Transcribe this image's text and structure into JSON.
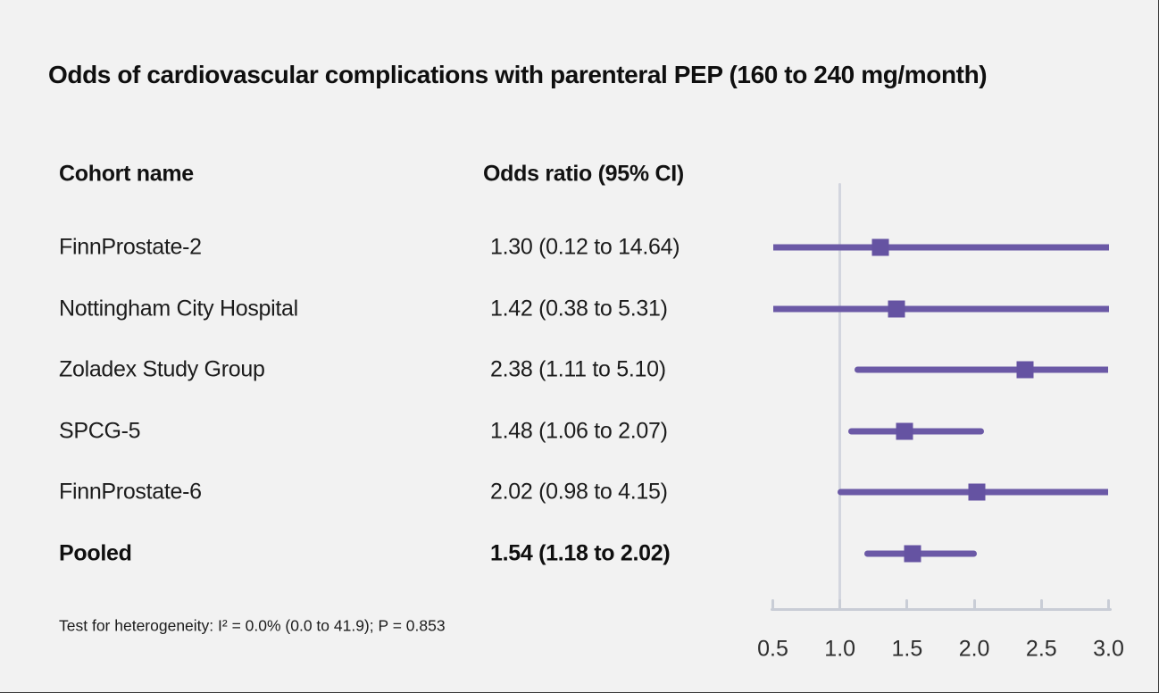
{
  "title": "Odds of cardiovascular complications with parenteral PEP (160 to 240 mg/month)",
  "table": {
    "col1_header": "Cohort name",
    "col2_header": "Odds ratio (95% CI)",
    "rows": [
      {
        "name": "FinnProstate-2",
        "or_text": "1.30 (0.12 to 14.64)",
        "bold": false
      },
      {
        "name": "Nottingham City Hospital",
        "or_text": "1.42 (0.38 to 5.31)",
        "bold": false
      },
      {
        "name": "Zoladex Study Group",
        "or_text": "2.38 (1.11 to 5.10)",
        "bold": false
      },
      {
        "name": "SPCG-5",
        "or_text": "1.48 (1.06 to 2.07)",
        "bold": false
      },
      {
        "name": "FinnProstate-6",
        "or_text": "2.02 (0.98 to 4.15)",
        "bold": false
      },
      {
        "name": "Pooled",
        "or_text": "1.54 (1.18 to 2.02)",
        "bold": true
      }
    ]
  },
  "footnote": "Test for heterogeneity: I² = 0.0% (0.0 to 41.9); P = 0.853",
  "chart_data": {
    "type": "forest",
    "title": "Odds of cardiovascular complications with parenteral PEP (160 to 240 mg/month)",
    "xlabel": "Odds ratio",
    "xlim": [
      0.5,
      3.0
    ],
    "x_ticks": [
      0.5,
      1.0,
      1.5,
      2.0,
      2.5,
      3.0
    ],
    "x_tick_labels": [
      "0.5",
      "1.0",
      "1.5",
      "2.0",
      "2.5",
      "3.0"
    ],
    "reference_line_x": 1.0,
    "grid": false,
    "series": [
      {
        "label": "FinnProstate-2",
        "or": 1.3,
        "ci_low": 0.12,
        "ci_high": 14.64,
        "pooled": false
      },
      {
        "label": "Nottingham City Hospital",
        "or": 1.42,
        "ci_low": 0.38,
        "ci_high": 5.31,
        "pooled": false
      },
      {
        "label": "Zoladex Study Group",
        "or": 2.38,
        "ci_low": 1.11,
        "ci_high": 5.1,
        "pooled": false
      },
      {
        "label": "SPCG-5",
        "or": 1.48,
        "ci_low": 1.06,
        "ci_high": 2.07,
        "pooled": false
      },
      {
        "label": "FinnProstate-6",
        "or": 2.02,
        "ci_low": 0.98,
        "ci_high": 4.15,
        "pooled": false
      },
      {
        "label": "Pooled",
        "or": 1.54,
        "ci_low": 1.18,
        "ci_high": 2.02,
        "pooled": true
      }
    ],
    "heterogeneity_note": "Test for heterogeneity: I² = 0.0% (0.0 to 41.9); P = 0.853",
    "colors": {
      "ci_line": "#6b59a6",
      "marker": "#6553a2",
      "reference_line": "#d3d6df",
      "axis": "#c9cdd6",
      "background": "#f2f2f2"
    }
  }
}
